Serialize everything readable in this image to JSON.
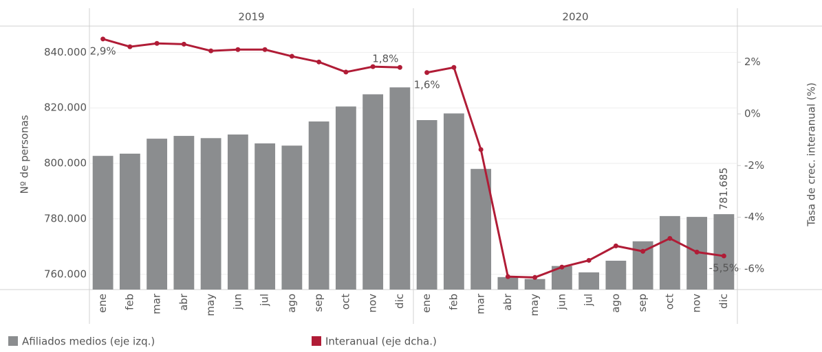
{
  "chart_data": {
    "type": "bar-line",
    "panels": [
      {
        "title": "2019",
        "categories": [
          "ene",
          "feb",
          "mar",
          "abr",
          "may",
          "jun",
          "jul",
          "ago",
          "sep",
          "oct",
          "nov",
          "dic"
        ]
      },
      {
        "title": "2020",
        "categories": [
          "ene",
          "feb",
          "mar",
          "abr",
          "may",
          "jun",
          "jul",
          "ago",
          "sep",
          "oct",
          "nov",
          "dic"
        ]
      }
    ],
    "y_label": "Nº de personas",
    "y2_label": "Tasa de crec. interanual (%)",
    "ylim": [
      754500,
      849500
    ],
    "yticks": [
      {
        "value": 760000,
        "label": "760.000"
      },
      {
        "value": 780000,
        "label": "780.000"
      },
      {
        "value": 800000,
        "label": "800.000"
      },
      {
        "value": 820000,
        "label": "820.000"
      },
      {
        "value": 840000,
        "label": "840.000"
      }
    ],
    "y2lim": [
      -6.8,
      3.4
    ],
    "y2ticks": [
      {
        "value": -6,
        "label": "-6%"
      },
      {
        "value": -4,
        "label": "-4%"
      },
      {
        "value": -2,
        "label": "-2%"
      },
      {
        "value": 0,
        "label": "0%"
      },
      {
        "value": 2,
        "label": "2%"
      }
    ],
    "grid": true,
    "series": [
      {
        "name": "Afiliados medios (eje izq.)",
        "color": "#8b8d8f",
        "kind": "bar",
        "values": [
          802700,
          803500,
          808900,
          809900,
          809100,
          810400,
          807200,
          806400,
          815100,
          820500,
          824900,
          827400,
          815600,
          818000,
          798000,
          759000,
          758300,
          763000,
          760700,
          764900,
          771900,
          781000,
          780700,
          781685
        ],
        "value_labels": [
          null,
          null,
          null,
          null,
          null,
          null,
          null,
          null,
          null,
          null,
          null,
          null,
          null,
          null,
          null,
          null,
          null,
          null,
          null,
          null,
          null,
          null,
          null,
          "781.685"
        ]
      },
      {
        "name": "Interanual (eje dcha.)",
        "color": "#b01c36",
        "kind": "line",
        "axis": "y2",
        "values": [
          2.9,
          2.6,
          2.73,
          2.7,
          2.44,
          2.49,
          2.49,
          2.23,
          2.01,
          1.62,
          1.83,
          1.8,
          1.6,
          1.8,
          -1.38,
          -6.3,
          -6.33,
          -5.93,
          -5.67,
          -5.11,
          -5.32,
          -4.82,
          -5.35,
          -5.5
        ],
        "value_labels": [
          "2,9%",
          null,
          null,
          null,
          null,
          null,
          null,
          null,
          null,
          null,
          null,
          "1,8%",
          "1,6%",
          null,
          null,
          null,
          null,
          null,
          null,
          null,
          null,
          null,
          null,
          "-5,5%"
        ]
      }
    ],
    "legend": "bottom"
  }
}
